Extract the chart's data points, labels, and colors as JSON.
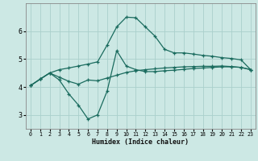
{
  "xlabel": "Humidex (Indice chaleur)",
  "bg_color": "#cce8e4",
  "line_color": "#1a6b5e",
  "grid_color": "#aad0cc",
  "xlim": [
    -0.5,
    23.5
  ],
  "ylim": [
    2.5,
    7.0
  ],
  "yticks": [
    3,
    4,
    5,
    6
  ],
  "xticks": [
    0,
    1,
    2,
    3,
    4,
    5,
    6,
    7,
    8,
    9,
    10,
    11,
    12,
    13,
    14,
    15,
    16,
    17,
    18,
    19,
    20,
    21,
    22,
    23
  ],
  "curve1_x": [
    0,
    1,
    2,
    3,
    4,
    5,
    6,
    7,
    8,
    9,
    10,
    11,
    12,
    13,
    14,
    15,
    16,
    17,
    18,
    19,
    20,
    21,
    22,
    23
  ],
  "curve1_y": [
    4.05,
    4.28,
    4.5,
    4.62,
    4.68,
    4.75,
    4.82,
    4.9,
    5.5,
    6.15,
    6.5,
    6.48,
    6.15,
    5.82,
    5.35,
    5.22,
    5.22,
    5.18,
    5.13,
    5.1,
    5.05,
    5.02,
    4.97,
    4.62
  ],
  "curve2_x": [
    0,
    1,
    2,
    3,
    4,
    5,
    6,
    7,
    8,
    9,
    10,
    11,
    12,
    13,
    14,
    15,
    16,
    17,
    18,
    19,
    20,
    21,
    22,
    23
  ],
  "curve2_y": [
    4.05,
    4.28,
    4.5,
    4.25,
    3.75,
    3.35,
    2.85,
    3.0,
    3.85,
    5.3,
    4.75,
    4.62,
    4.55,
    4.55,
    4.58,
    4.6,
    4.63,
    4.66,
    4.68,
    4.7,
    4.72,
    4.72,
    4.7,
    4.62
  ],
  "curve3_x": [
    0,
    1,
    2,
    3,
    4,
    5,
    6,
    7,
    8,
    9,
    10,
    11,
    12,
    13,
    14,
    15,
    16,
    17,
    18,
    19,
    20,
    21,
    22,
    23
  ],
  "curve3_y": [
    4.05,
    4.28,
    4.5,
    4.35,
    4.2,
    4.1,
    4.25,
    4.22,
    4.32,
    4.42,
    4.52,
    4.58,
    4.62,
    4.65,
    4.68,
    4.7,
    4.72,
    4.73,
    4.74,
    4.74,
    4.75,
    4.73,
    4.7,
    4.62
  ],
  "marker": "+",
  "markersize": 3,
  "linewidth": 0.9
}
